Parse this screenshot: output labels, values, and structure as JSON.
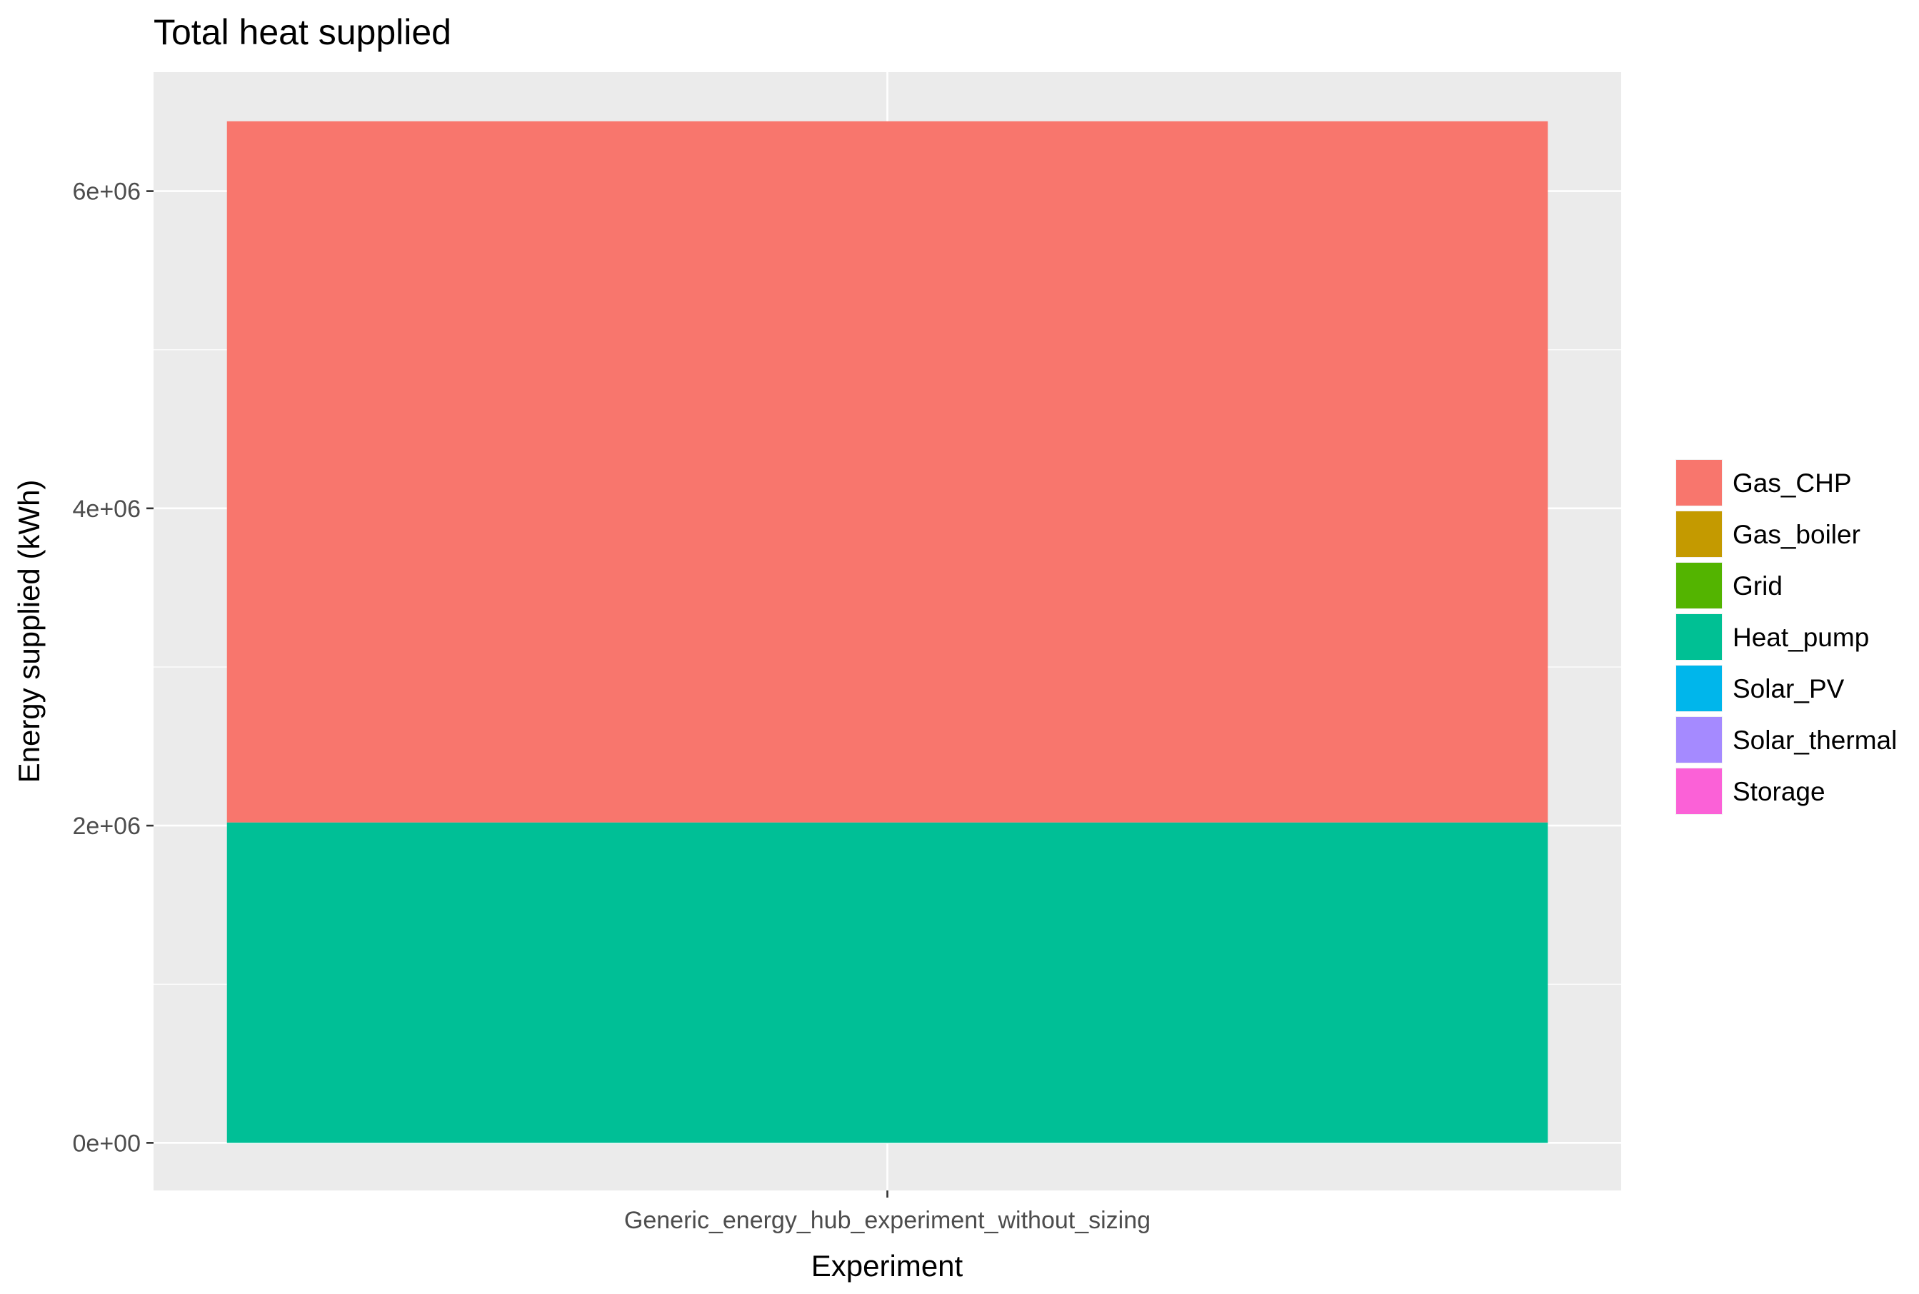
{
  "chart_data": {
    "type": "bar",
    "stacked": true,
    "title": "Total heat supplied",
    "xlabel": "Experiment",
    "ylabel": "Energy supplied (kWh)",
    "categories": [
      "Generic_energy_hub_experiment_without_sizing"
    ],
    "ylim": [
      -300000,
      6750000
    ],
    "yticks": [
      0,
      2000000,
      4000000,
      6000000
    ],
    "ytick_labels": [
      "0e+00",
      "2e+06",
      "4e+06",
      "6e+06"
    ],
    "grid": true,
    "legend_position": "right",
    "series": [
      {
        "name": "Heat_pump",
        "color": "#00BF96",
        "values": [
          2020000
        ]
      },
      {
        "name": "Gas_CHP",
        "color": "#F8766D",
        "values": [
          4420000
        ]
      }
    ],
    "legend": [
      {
        "name": "Gas_CHP",
        "color": "#F8766D"
      },
      {
        "name": "Gas_boiler",
        "color": "#C49A00"
      },
      {
        "name": "Grid",
        "color": "#53B400"
      },
      {
        "name": "Heat_pump",
        "color": "#00C094"
      },
      {
        "name": "Solar_PV",
        "color": "#00B6EB"
      },
      {
        "name": "Solar_thermal",
        "color": "#A58AFF"
      },
      {
        "name": "Storage",
        "color": "#FB61D7"
      }
    ]
  }
}
